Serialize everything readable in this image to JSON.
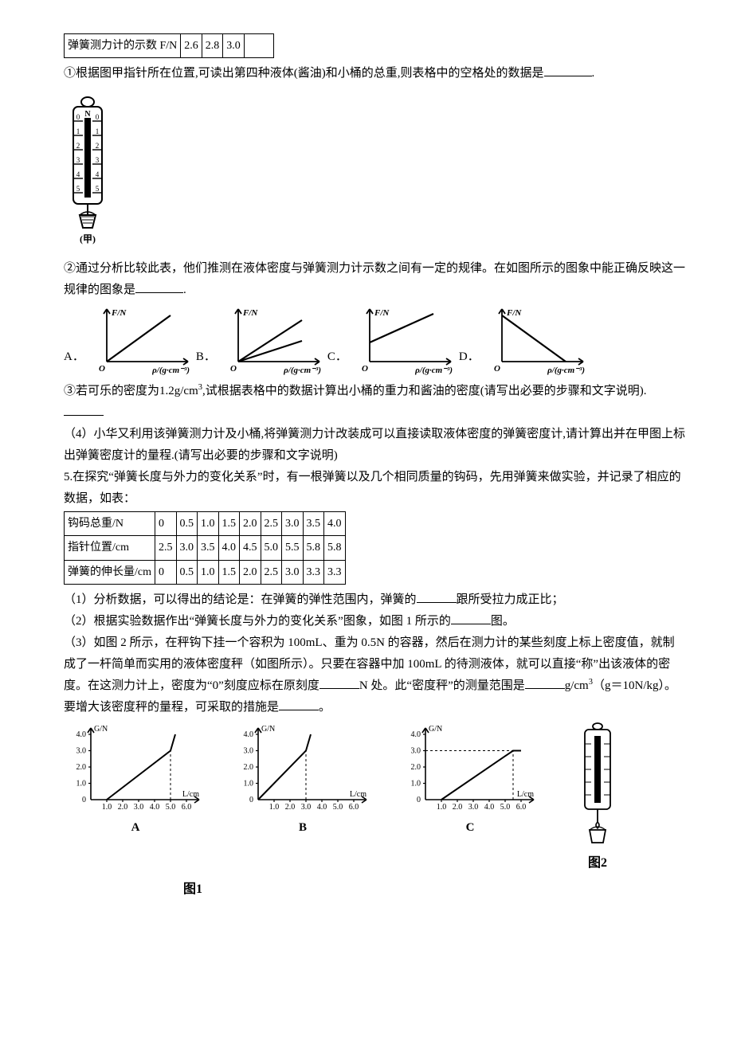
{
  "table1": {
    "header": "弹簧测力计的示数 F/N",
    "cells": [
      "2.6",
      "2.8",
      "3.0",
      ""
    ]
  },
  "q1": {
    "text_a": "①根据图甲指针所在位置,可读出第四种液体(酱油)和小桶的总重,则表格中的空格处的数据是",
    "text_b": "."
  },
  "spring_fig": {
    "caption": "(甲)",
    "scale_left": [
      "0",
      "1",
      "2",
      "3",
      "4",
      "5"
    ],
    "scale_right": [
      "0",
      "1",
      "2",
      "3",
      "4",
      "5"
    ],
    "top_label": "N"
  },
  "q2": {
    "text_a": "②通过分析比较此表，他们推测在液体密度与弹簧测力计示数之间有一定的规律。在如图所示的图象中能正确反映这一规律的图象是",
    "text_b": "."
  },
  "opt_graphs": {
    "ylabel": "F/N",
    "xlabel": "ρ/(g·cm⁻³)",
    "origin": "O",
    "labels": {
      "A": "A．",
      "B": "B．",
      "C": "C．",
      "D": "D．"
    }
  },
  "q3": {
    "text_a": "③若可乐的密度为1.2g/cm",
    "sup": "3",
    "text_b": ",试根据表格中的数据计算出小桶的重力和酱油的密度(请写出必要的步骤和文字说明)."
  },
  "q4": "（4）小华又利用该弹簧测力计及小桶,将弹簧测力计改装成可以直接读取液体密度的弹簧密度计,请计算出并在甲图上标出弹簧密度计的量程.(请写出必要的步骤和文字说明)",
  "q5": {
    "intro_a": "5.在探究“弹簧长度与外力的变化关系”时，有一根弹簧以及几个相同质量的钩码，先用弹簧来做实验，并记录了相应的数据，如表：",
    "table": {
      "row1_label": "钩码总重/N",
      "row1": [
        "0",
        "0.5",
        "1.0",
        "1.5",
        "2.0",
        "2.5",
        "3.0",
        "3.5",
        "4.0"
      ],
      "row2_label": "指针位置/cm",
      "row2": [
        "2.5",
        "3.0",
        "3.5",
        "4.0",
        "4.5",
        "5.0",
        "5.5",
        "5.8",
        "5.8"
      ],
      "row3_label": "弹簧的伸长量/cm",
      "row3": [
        "0",
        "0.5",
        "1.0",
        "1.5",
        "2.0",
        "2.5",
        "3.0",
        "3.3",
        "3.3"
      ]
    },
    "p1_a": "（1）分析数据，可以得出的结论是：在弹簧的弹性范围内，弹簧的",
    "p1_b": "跟所受拉力成正比；",
    "p2_a": "（2）根据实验数据作出“弹簧长度与外力的变化关系”图象，如图 1 所示的",
    "p2_b": "图。",
    "p3_a": "（3）如图 2 所示，在秤钩下挂一个容积为 100mL、重为 0.5N 的容器，然后在测力计的某些刻度上标上密度值，就制成了一杆简单而实用的液体密度秤（如图所示）。只要在容器中加 100mL 的待测液体，就可以直接“称”出该液体的密度。在这测力计上，密度为“0”刻度应标在原刻度",
    "p3_b": "N 处。此“密度秤”的测量范围是",
    "p3_c": "g/cm",
    "p3_sup": "3",
    "p3_d": "（g＝10N/kg）。要增大该密度秤的量程，可采取的措施是",
    "p3_e": "。"
  },
  "bottom_graphs": {
    "ylabel": "G/N",
    "xlabel": "L/cm",
    "yticks": [
      "0",
      "1.0",
      "2.0",
      "3.0",
      "4.0"
    ],
    "xticks": [
      "1.0",
      "2.0",
      "3.0",
      "4.0",
      "5.0",
      "6.0"
    ],
    "labels": {
      "A": "A",
      "B": "B",
      "C": "C"
    },
    "fig1": "图1",
    "fig2": "图2"
  },
  "style": {
    "axis_color": "#000000",
    "line_color": "#000000",
    "font_axis": 10,
    "font_body": 15
  }
}
